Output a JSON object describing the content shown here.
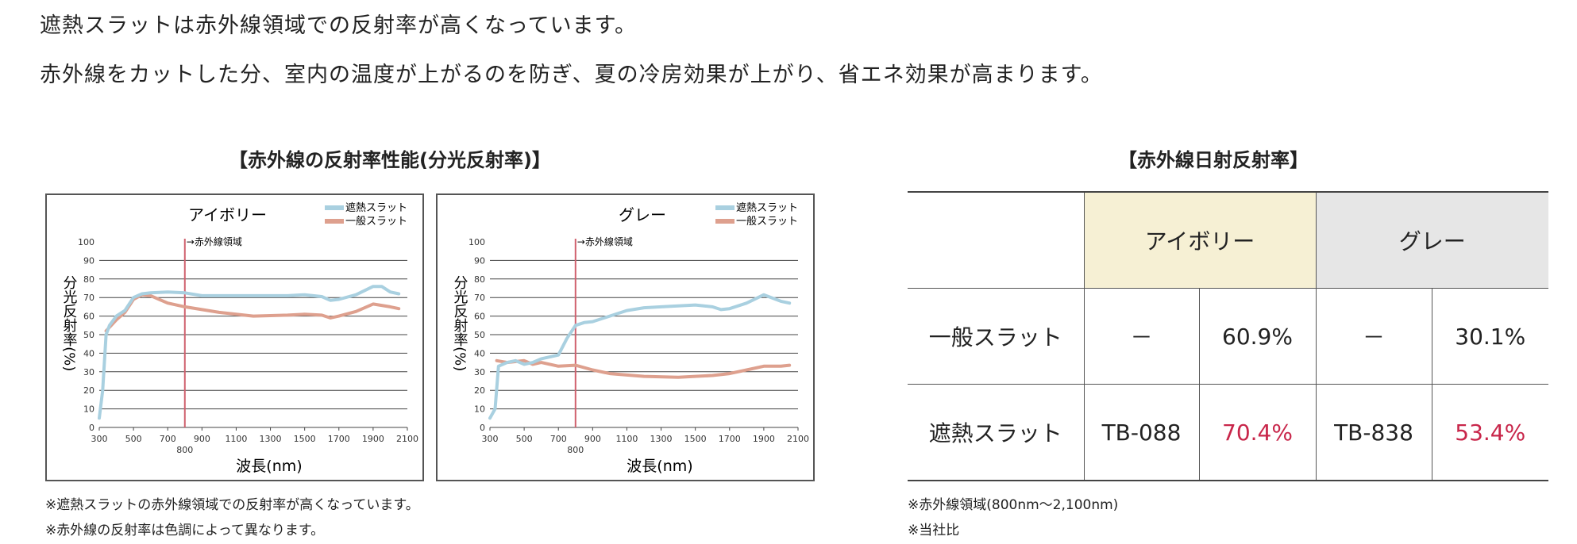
{
  "intro": {
    "line1": "遮熱スラットは赤外線領域での反射率が高くなっています。",
    "line2": "赤外線をカットした分、室内の温度が上がるのを防ぎ、夏の冷房効果が上がり、省エネ効果が高まります。"
  },
  "spectral": {
    "title": "【赤外線の反射率性能(分光反射率)】",
    "notes": [
      "※遮熱スラットの赤外線領域での反射率が高くなっています。",
      "※赤外線の反射率は色調によって異なります。"
    ]
  },
  "chart_data": [
    {
      "type": "line",
      "title": "アイボリー",
      "xlabel": "波長(nm)",
      "ylabel": "分光反射率(%)",
      "xlim": [
        300,
        2100
      ],
      "ylim": [
        0,
        100
      ],
      "xticks": [
        300,
        500,
        700,
        900,
        1100,
        1300,
        1500,
        1700,
        1900,
        2100
      ],
      "extra_xtick": 800,
      "yticks": [
        0,
        10,
        20,
        30,
        40,
        50,
        60,
        70,
        80,
        90,
        100
      ],
      "grid": true,
      "legend": "top-right",
      "annotation": {
        "x": 800,
        "label": "→赤外線領域"
      },
      "series": [
        {
          "name": "遮熱スラット",
          "color": "#a9d0e0",
          "x": [
            300,
            320,
            340,
            360,
            400,
            450,
            500,
            550,
            600,
            700,
            800,
            900,
            1000,
            1200,
            1400,
            1500,
            1600,
            1650,
            1700,
            1800,
            1900,
            1950,
            2000,
            2050
          ],
          "y": [
            5,
            20,
            50,
            55,
            60,
            63,
            70,
            72,
            72.5,
            73,
            72.5,
            71,
            71,
            71,
            71,
            71.5,
            70.5,
            68.5,
            69,
            71.5,
            76,
            76,
            73,
            72
          ]
        },
        {
          "name": "一般スラット",
          "color": "#dea08e",
          "x": [
            340,
            400,
            450,
            500,
            550,
            600,
            700,
            800,
            900,
            1000,
            1200,
            1400,
            1500,
            1600,
            1650,
            1700,
            1800,
            1900,
            2000,
            2050
          ],
          "y": [
            52,
            58,
            62,
            69,
            71.5,
            71,
            67,
            65,
            63.5,
            62,
            60,
            60.5,
            61,
            60.5,
            59,
            60,
            62.5,
            66.5,
            65,
            64
          ]
        }
      ]
    },
    {
      "type": "line",
      "title": "グレー",
      "xlabel": "波長(nm)",
      "ylabel": "分光反射率(%)",
      "xlim": [
        300,
        2100
      ],
      "ylim": [
        0,
        100
      ],
      "xticks": [
        300,
        500,
        700,
        900,
        1100,
        1300,
        1500,
        1700,
        1900,
        2100
      ],
      "extra_xtick": 800,
      "yticks": [
        0,
        10,
        20,
        30,
        40,
        50,
        60,
        70,
        80,
        90,
        100
      ],
      "grid": true,
      "legend": "top-right",
      "annotation": {
        "x": 800,
        "label": "→赤外線領域"
      },
      "series": [
        {
          "name": "遮熱スラット",
          "color": "#a9d0e0",
          "x": [
            300,
            330,
            350,
            400,
            450,
            500,
            550,
            600,
            700,
            750,
            800,
            850,
            900,
            1000,
            1100,
            1200,
            1300,
            1400,
            1500,
            1600,
            1650,
            1700,
            1800,
            1900,
            2000,
            2050
          ],
          "y": [
            5,
            10,
            33,
            35,
            36,
            34,
            35,
            37,
            39,
            48,
            55,
            56.5,
            57,
            60,
            63,
            64.5,
            65,
            65.5,
            66,
            65,
            63.5,
            64,
            67,
            71.5,
            68,
            67
          ]
        },
        {
          "name": "一般スラット",
          "color": "#dea08e",
          "x": [
            340,
            400,
            500,
            550,
            600,
            700,
            800,
            900,
            1000,
            1200,
            1400,
            1600,
            1700,
            1800,
            1900,
            2000,
            2050
          ],
          "y": [
            36,
            35,
            36,
            34,
            35,
            33,
            33.5,
            31,
            29,
            27.5,
            27,
            28,
            29,
            31,
            33,
            33,
            33.5
          ]
        }
      ]
    }
  ],
  "solar": {
    "title": "【赤外線日射反射率】",
    "colors": {
      "ivory": "#f6f0d4",
      "gray": "#e6e6e6",
      "highlight": "#c8264a"
    },
    "headers": [
      "アイボリー",
      "グレー"
    ],
    "rows": [
      {
        "label": "一般スラット",
        "cells": [
          "－",
          "60.9%",
          "－",
          "30.1%"
        ]
      },
      {
        "label": "遮熱スラット",
        "cells": [
          "TB-088",
          "70.4%",
          "TB-838",
          "53.4%"
        ]
      }
    ],
    "notes": [
      "※赤外線領域(800nm～2,100nm)",
      "※当社比"
    ]
  }
}
